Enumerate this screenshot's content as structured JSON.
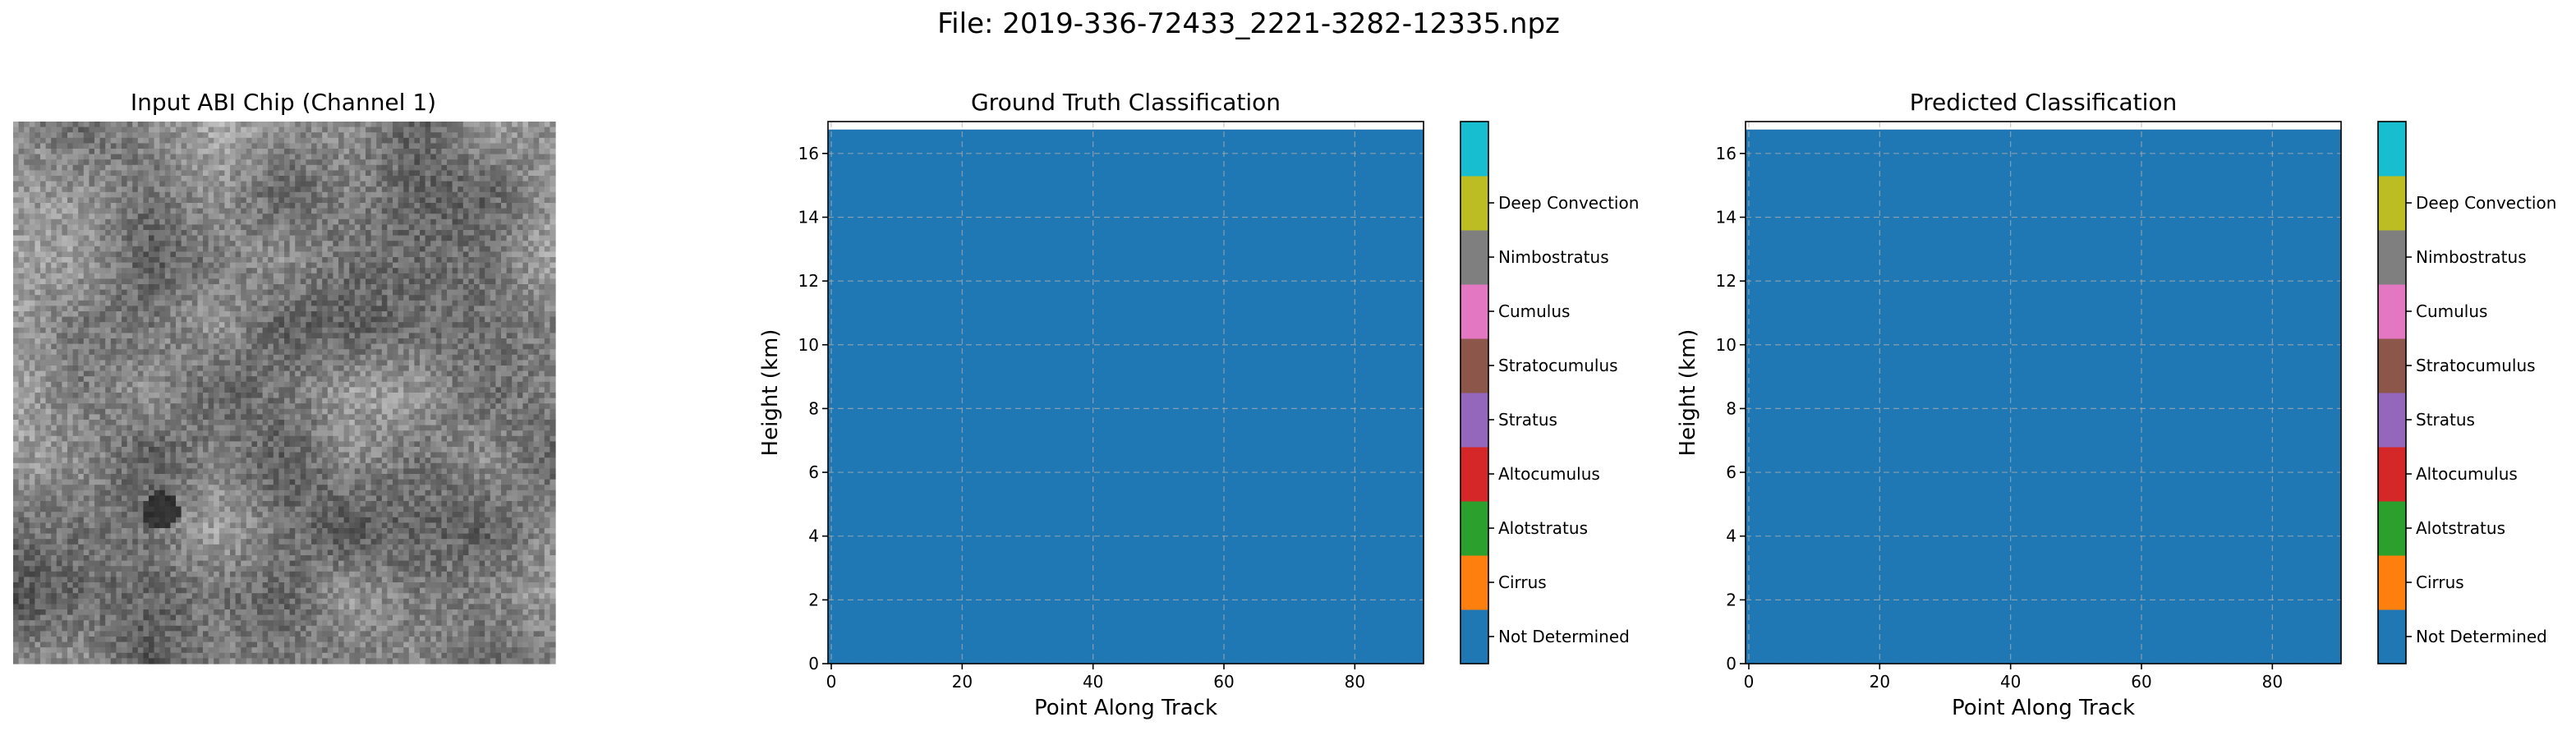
{
  "figure_title": "File: 2019-336-72433_2221-3282-12335.npz",
  "image_panel": {
    "title": "Input ABI Chip (Channel 1)",
    "colormap": "grayscale",
    "grid_size": 100
  },
  "chart_data": [
    {
      "type": "heatmap",
      "title": "Ground Truth Classification",
      "xlabel": "Point Along Track",
      "ylabel": "Height (km)",
      "xlim": [
        -0.5,
        90.5
      ],
      "ylim": [
        0,
        17
      ],
      "xticks": [
        0,
        20,
        40,
        60,
        80
      ],
      "yticks": [
        0,
        2,
        4,
        6,
        8,
        10,
        12,
        14,
        16
      ],
      "grid": true,
      "data_extent_y": [
        0,
        16.75
      ],
      "values": "all cells = 0 (Not Determined)",
      "fill_class": "Not Determined",
      "colorbar": {
        "classes": [
          "Not Determined",
          "Cirrus",
          "Alotstratus",
          "Altocumulus",
          "Stratus",
          "Stratocumulus",
          "Cumulus",
          "Nimbostratus",
          "Deep Convection"
        ],
        "colors": [
          "#1f77b4",
          "#ff7f0e",
          "#2ca02c",
          "#d62728",
          "#9467bd",
          "#8c564b",
          "#e377c2",
          "#7f7f7f",
          "#bcbd22",
          "#17becf"
        ]
      }
    },
    {
      "type": "heatmap",
      "title": "Predicted Classification",
      "xlabel": "Point Along Track",
      "ylabel": "Height (km)",
      "xlim": [
        -0.5,
        90.5
      ],
      "ylim": [
        0,
        17
      ],
      "xticks": [
        0,
        20,
        40,
        60,
        80
      ],
      "yticks": [
        0,
        2,
        4,
        6,
        8,
        10,
        12,
        14,
        16
      ],
      "grid": true,
      "data_extent_y": [
        0,
        16.75
      ],
      "values": "all cells = 0 (Not Determined)",
      "fill_class": "Not Determined",
      "colorbar": {
        "classes": [
          "Not Determined",
          "Cirrus",
          "Alotstratus",
          "Altocumulus",
          "Stratus",
          "Stratocumulus",
          "Cumulus",
          "Nimbostratus",
          "Deep Convection"
        ],
        "colors": [
          "#1f77b4",
          "#ff7f0e",
          "#2ca02c",
          "#d62728",
          "#9467bd",
          "#8c564b",
          "#e377c2",
          "#7f7f7f",
          "#bcbd22",
          "#17becf"
        ]
      }
    }
  ]
}
